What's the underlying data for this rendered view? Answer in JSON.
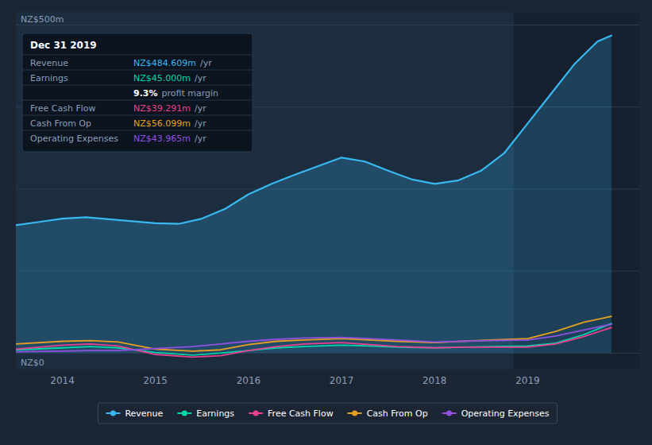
{
  "chart_data": {
    "type": "line",
    "xlim": [
      2013.5,
      2020.2
    ],
    "xticks": [
      2014,
      2015,
      2016,
      2017,
      2018,
      2019
    ],
    "ylim": [
      -25,
      520
    ],
    "yticks": [
      0,
      125,
      250,
      375,
      500
    ],
    "grid": true,
    "tick_labels": "x",
    "legend": "bottom",
    "annotations": [
      "NZ$500m",
      "NZ$0"
    ],
    "highlight_x": [
      2018.85,
      2020.2
    ],
    "series": [
      {
        "name": "Revenue",
        "type": "area",
        "color": "#38b8f0",
        "x": [
          2013.5,
          2013.75,
          2014.0,
          2014.25,
          2014.5,
          2014.75,
          2015.0,
          2015.25,
          2015.5,
          2015.75,
          2016.0,
          2016.25,
          2016.5,
          2016.75,
          2017.0,
          2017.25,
          2017.5,
          2017.75,
          2018.0,
          2018.25,
          2018.5,
          2018.75,
          2019.0,
          2019.25,
          2019.5,
          2019.75,
          2019.9
        ],
        "values": [
          195,
          200,
          205,
          207,
          204,
          201,
          198,
          197,
          205,
          220,
          242,
          258,
          272,
          285,
          298,
          292,
          278,
          265,
          258,
          263,
          278,
          305,
          350,
          395,
          440,
          475,
          484
        ]
      },
      {
        "name": "Earnings",
        "type": "line",
        "color": "#00d4aa",
        "x": [
          2013.5,
          2014.0,
          2014.3,
          2014.6,
          2015.0,
          2015.4,
          2015.7,
          2016.0,
          2016.3,
          2016.6,
          2017.0,
          2017.3,
          2017.6,
          2018.0,
          2018.3,
          2018.6,
          2019.0,
          2019.3,
          2019.6,
          2019.9
        ],
        "values": [
          5,
          8,
          10,
          8,
          1,
          -3,
          0,
          4,
          8,
          10,
          12,
          11,
          9,
          8,
          9,
          10,
          11,
          15,
          28,
          45
        ]
      },
      {
        "name": "Free Cash Flow",
        "type": "line",
        "color": "#e84090",
        "x": [
          2013.5,
          2014.0,
          2014.3,
          2014.6,
          2015.0,
          2015.4,
          2015.7,
          2016.0,
          2016.3,
          2016.6,
          2017.0,
          2017.3,
          2017.6,
          2018.0,
          2018.3,
          2018.6,
          2019.0,
          2019.3,
          2019.6,
          2019.9
        ],
        "values": [
          6,
          12,
          14,
          11,
          -2,
          -6,
          -4,
          4,
          10,
          14,
          16,
          13,
          10,
          8,
          9,
          9,
          9,
          14,
          25,
          39
        ]
      },
      {
        "name": "Cash From Op",
        "type": "line",
        "color": "#e8a020",
        "x": [
          2013.5,
          2014.0,
          2014.3,
          2014.6,
          2015.0,
          2015.4,
          2015.7,
          2016.0,
          2016.3,
          2016.6,
          2017.0,
          2017.3,
          2017.6,
          2018.0,
          2018.3,
          2018.6,
          2019.0,
          2019.3,
          2019.6,
          2019.9
        ],
        "values": [
          14,
          18,
          19,
          17,
          6,
          3,
          5,
          13,
          18,
          20,
          22,
          20,
          18,
          16,
          18,
          20,
          22,
          33,
          47,
          56
        ]
      },
      {
        "name": "Operating Expenses",
        "type": "line",
        "color": "#9050e0",
        "x": [
          2013.5,
          2014.0,
          2014.3,
          2014.6,
          2015.0,
          2015.4,
          2015.7,
          2016.0,
          2016.3,
          2016.6,
          2017.0,
          2017.3,
          2017.6,
          2018.0,
          2018.3,
          2018.6,
          2019.0,
          2019.3,
          2019.6,
          2019.9
        ],
        "values": [
          2,
          3,
          4,
          4,
          7,
          10,
          14,
          18,
          21,
          23,
          24,
          22,
          20,
          17,
          18,
          19,
          20,
          26,
          35,
          44
        ]
      }
    ],
    "info_box": {
      "title": "Dec 31 2019",
      "rows": [
        {
          "label": "Revenue",
          "value": "NZ$484.609m",
          "unit": "/yr",
          "color": "#38b8f0"
        },
        {
          "label": "Earnings",
          "value": "NZ$45.000m",
          "unit": "/yr",
          "color": "#00d4aa"
        },
        {
          "value": "9.3%",
          "unit": "profit margin",
          "color": "#ffffff"
        },
        {
          "label": "Free Cash Flow",
          "value": "NZ$39.291m",
          "unit": "/yr",
          "color": "#e84090"
        },
        {
          "label": "Cash From Op",
          "value": "NZ$56.099m",
          "unit": "/yr",
          "color": "#e8a020"
        },
        {
          "label": "Operating Expenses",
          "value": "NZ$43.965m",
          "unit": "/yr",
          "color": "#9050e0"
        }
      ]
    }
  }
}
